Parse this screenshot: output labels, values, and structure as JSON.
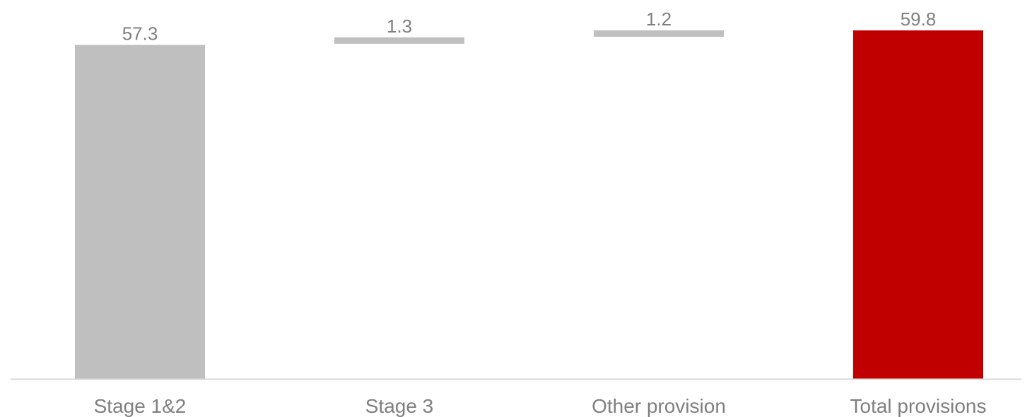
{
  "chart_data": {
    "type": "bar",
    "subtype": "waterfall",
    "title": "",
    "xlabel": "",
    "ylabel": "",
    "categories": [
      "Stage 1&2",
      "Stage 3",
      "Other provision",
      "Total provisions"
    ],
    "values": [
      57.3,
      1.3,
      1.2,
      59.8
    ],
    "value_labels": [
      "57.3",
      "1.3",
      "1.2",
      "59.8"
    ],
    "bar_kinds": [
      "total",
      "increment",
      "increment",
      "total"
    ],
    "ylim": [
      0,
      59.8
    ],
    "grid": false,
    "legend": "none",
    "colors": {
      "stage_bar": "#bfbfbf",
      "increment_bar": "#bfbfbf",
      "total_bar": "#c00000",
      "axis": "#d9d9d9",
      "text": "#7f7f7f"
    }
  }
}
